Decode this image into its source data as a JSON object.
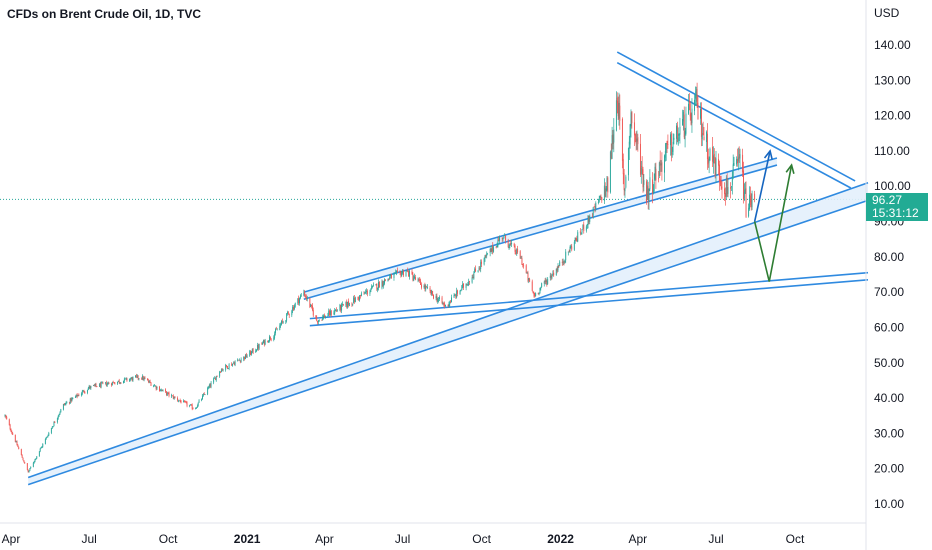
{
  "header": {
    "title": "CFDs on Brent Crude Oil, 1D, TVC"
  },
  "price_axis": {
    "currency": "USD"
  },
  "last_price": {
    "value": "96.27",
    "countdown": "15:31:12",
    "color": "#22ab94"
  },
  "colors": {
    "up": "#26a69a",
    "down": "#ef5350",
    "drawing": "#2f8ae0",
    "arrow_blue": "#1565c0",
    "arrow_green": "#2e7d32",
    "channel_fill": "#e3effc"
  },
  "chart_data": {
    "type": "candlestick",
    "symbol": "CFDs on Brent Crude Oil",
    "interval": "1D",
    "source": "TVC",
    "ylim": [
      4,
      145
    ],
    "y_ticks": [
      "10.00",
      "20.00",
      "30.00",
      "40.00",
      "50.00",
      "60.00",
      "70.00",
      "80.00",
      "90.00",
      "100.00",
      "110.00",
      "120.00",
      "130.00",
      "140.00"
    ],
    "x_ticks": [
      {
        "label": "Apr",
        "date": "2020-04-01"
      },
      {
        "label": "Jul",
        "date": "2020-07-01"
      },
      {
        "label": "Oct",
        "date": "2020-10-01"
      },
      {
        "label": "2021",
        "date": "2021-01-01",
        "bold": true
      },
      {
        "label": "Apr",
        "date": "2021-04-01"
      },
      {
        "label": "Jul",
        "date": "2021-07-01"
      },
      {
        "label": "Oct",
        "date": "2021-10-01"
      },
      {
        "label": "2022",
        "date": "2022-01-01",
        "bold": true
      },
      {
        "label": "Apr",
        "date": "2022-04-01"
      },
      {
        "label": "Jul",
        "date": "2022-07-01"
      },
      {
        "label": "Oct",
        "date": "2022-10-01"
      }
    ],
    "key_points": [
      {
        "date": "2020-03-25",
        "value": 35
      },
      {
        "date": "2020-04-21",
        "value": 19
      },
      {
        "date": "2020-06-01",
        "value": 38
      },
      {
        "date": "2020-07-01",
        "value": 43
      },
      {
        "date": "2020-08-30",
        "value": 46
      },
      {
        "date": "2020-10-01",
        "value": 41
      },
      {
        "date": "2020-11-01",
        "value": 37
      },
      {
        "date": "2020-12-01",
        "value": 48
      },
      {
        "date": "2021-01-01",
        "value": 52
      },
      {
        "date": "2021-02-01",
        "value": 58
      },
      {
        "date": "2021-03-08",
        "value": 70
      },
      {
        "date": "2021-03-23",
        "value": 62
      },
      {
        "date": "2021-05-01",
        "value": 67
      },
      {
        "date": "2021-06-15",
        "value": 74
      },
      {
        "date": "2021-07-05",
        "value": 76
      },
      {
        "date": "2021-08-20",
        "value": 66
      },
      {
        "date": "2021-09-15",
        "value": 73
      },
      {
        "date": "2021-10-25",
        "value": 86
      },
      {
        "date": "2021-11-15",
        "value": 80
      },
      {
        "date": "2021-12-01",
        "value": 69
      },
      {
        "date": "2022-01-01",
        "value": 78
      },
      {
        "date": "2022-02-01",
        "value": 90
      },
      {
        "date": "2022-02-25",
        "value": 100
      },
      {
        "date": "2022-03-08",
        "value": 127
      },
      {
        "date": "2022-03-16",
        "value": 98
      },
      {
        "date": "2022-03-24",
        "value": 120
      },
      {
        "date": "2022-04-11",
        "value": 98
      },
      {
        "date": "2022-05-01",
        "value": 108
      },
      {
        "date": "2022-06-08",
        "value": 123
      },
      {
        "date": "2022-06-22",
        "value": 110
      },
      {
        "date": "2022-07-14",
        "value": 99
      },
      {
        "date": "2022-07-29",
        "value": 107
      },
      {
        "date": "2022-08-05",
        "value": 94
      },
      {
        "date": "2022-08-15",
        "value": 96.27
      }
    ],
    "drawings": [
      {
        "kind": "channel",
        "lines": [
          [
            [
              "2020-04-21",
              17.5
            ],
            [
              "2022-12-25",
              101
            ]
          ],
          [
            [
              "2020-04-21",
              15.5
            ],
            [
              "2022-12-25",
              96
            ]
          ]
        ]
      },
      {
        "kind": "channel",
        "lines": [
          [
            [
              "2021-03-08",
              70
            ],
            [
              "2022-09-10",
              108
            ]
          ],
          [
            [
              "2021-03-08",
              68
            ],
            [
              "2022-09-10",
              106
            ]
          ]
        ]
      },
      {
        "kind": "line",
        "points": [
          [
            "2021-03-15",
            60.5
          ],
          [
            "2022-12-25",
            73.5
          ]
        ]
      },
      {
        "kind": "line",
        "points": [
          [
            "2021-03-15",
            62.5
          ],
          [
            "2022-12-25",
            75.5
          ]
        ]
      },
      {
        "kind": "line",
        "points": [
          [
            "2022-03-08",
            138
          ],
          [
            "2022-12-10",
            101.5
          ]
        ]
      },
      {
        "kind": "line",
        "points": [
          [
            "2022-03-08",
            135
          ],
          [
            "2022-12-05",
            99.5
          ]
        ]
      },
      {
        "kind": "arrow",
        "color": "blue",
        "points": [
          [
            "2022-08-15",
            90
          ],
          [
            "2022-09-02",
            110
          ]
        ]
      },
      {
        "kind": "arrow",
        "color": "green",
        "points": [
          [
            "2022-08-15",
            90
          ],
          [
            "2022-09-01",
            73
          ],
          [
            "2022-09-27",
            106
          ]
        ]
      }
    ],
    "grid": false,
    "legend": "none"
  }
}
